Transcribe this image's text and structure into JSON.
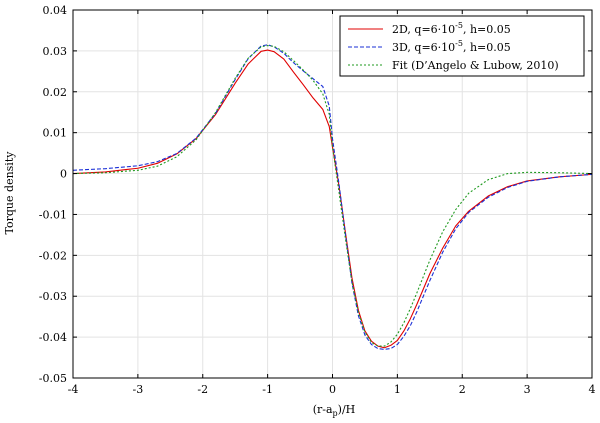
{
  "chart_data": {
    "type": "line",
    "title": "",
    "xlabel": "(r-a",
    "xlabel_sub": "p",
    "xlabel_suffix": ")/H",
    "ylabel": "Torque density",
    "xlim": [
      -4,
      4
    ],
    "ylim": [
      -0.05,
      0.04
    ],
    "xticks": [
      -4,
      -3,
      -2,
      -1,
      0,
      1,
      2,
      3,
      4
    ],
    "xtick_labels": [
      "-4",
      "-3",
      "-2",
      "-1",
      "0",
      "1",
      "2",
      "3",
      "4"
    ],
    "yticks": [
      -0.05,
      -0.04,
      -0.03,
      -0.02,
      -0.01,
      0,
      0.01,
      0.02,
      0.03,
      0.04
    ],
    "ytick_labels": [
      "-0.05",
      "-0.04",
      "-0.03",
      "-0.02",
      "-0.01",
      "0",
      "0.01",
      "0.02",
      "0.03",
      "0.04"
    ],
    "grid": true,
    "legend_position": "top-right",
    "series": [
      {
        "name": "2D, q=6·10",
        "name_sup": "-5",
        "name_suffix": ", h=0.05",
        "color": "#e00000",
        "dash": "",
        "x": [
          -4,
          -3.5,
          -3,
          -2.7,
          -2.4,
          -2.1,
          -1.8,
          -1.5,
          -1.3,
          -1.1,
          -1.0,
          -0.9,
          -0.75,
          -0.6,
          -0.45,
          -0.3,
          -0.15,
          -0.05,
          0.0,
          0.1,
          0.2,
          0.3,
          0.4,
          0.5,
          0.6,
          0.7,
          0.8,
          0.9,
          1.0,
          1.1,
          1.2,
          1.3,
          1.5,
          1.7,
          1.9,
          2.1,
          2.4,
          2.7,
          3.0,
          3.5,
          4.0
        ],
        "y": [
          0.0,
          0.0004,
          0.0013,
          0.0025,
          0.0048,
          0.0086,
          0.0145,
          0.0221,
          0.0268,
          0.0299,
          0.0302,
          0.0298,
          0.028,
          0.0248,
          0.0217,
          0.0185,
          0.0157,
          0.0115,
          0.0065,
          -0.003,
          -0.0145,
          -0.0255,
          -0.0335,
          -0.0385,
          -0.041,
          -0.0422,
          -0.0426,
          -0.042,
          -0.0408,
          -0.0385,
          -0.0355,
          -0.032,
          -0.0245,
          -0.0182,
          -0.0128,
          -0.0092,
          -0.0055,
          -0.0032,
          -0.0018,
          -0.0008,
          -0.0002
        ]
      },
      {
        "name": "3D, q=6·10",
        "name_sup": "-5",
        "name_suffix": ", h=0.05",
        "color": "#1a2fd6",
        "dash": "4,2",
        "x": [
          -4,
          -3.5,
          -3,
          -2.7,
          -2.4,
          -2.1,
          -1.8,
          -1.5,
          -1.3,
          -1.1,
          -1.0,
          -0.9,
          -0.75,
          -0.6,
          -0.45,
          -0.3,
          -0.15,
          -0.05,
          0.0,
          0.1,
          0.2,
          0.3,
          0.4,
          0.5,
          0.6,
          0.7,
          0.8,
          0.9,
          1.0,
          1.1,
          1.2,
          1.3,
          1.5,
          1.7,
          1.9,
          2.1,
          2.4,
          2.7,
          3.0,
          3.5,
          4.0
        ],
        "y": [
          0.0008,
          0.0012,
          0.0019,
          0.0029,
          0.0049,
          0.0087,
          0.0148,
          0.023,
          0.0281,
          0.0312,
          0.0315,
          0.031,
          0.0294,
          0.0271,
          0.0251,
          0.0232,
          0.0213,
          0.0165,
          0.0085,
          -0.0025,
          -0.015,
          -0.0268,
          -0.0348,
          -0.0395,
          -0.0418,
          -0.0428,
          -0.043,
          -0.0428,
          -0.0418,
          -0.0398,
          -0.0372,
          -0.0338,
          -0.0262,
          -0.0192,
          -0.0135,
          -0.0095,
          -0.0058,
          -0.0034,
          -0.0019,
          -0.0008,
          -0.0002
        ]
      },
      {
        "name": "Fit (D’Angelo & Lubow, 2010)",
        "name_sup": "",
        "name_suffix": "",
        "color": "#1f9a1f",
        "dash": "2,2",
        "x": [
          -4,
          -3.5,
          -3,
          -2.7,
          -2.4,
          -2.1,
          -1.8,
          -1.5,
          -1.3,
          -1.1,
          -1.0,
          -0.9,
          -0.75,
          -0.6,
          -0.45,
          -0.3,
          -0.15,
          -0.05,
          0.0,
          0.1,
          0.2,
          0.3,
          0.4,
          0.5,
          0.6,
          0.7,
          0.8,
          0.9,
          1.0,
          1.1,
          1.2,
          1.3,
          1.5,
          1.7,
          1.9,
          2.1,
          2.4,
          2.7,
          3.0,
          3.5,
          4.0
        ],
        "y": [
          0.0,
          0.0002,
          0.0008,
          0.0018,
          0.0041,
          0.0083,
          0.015,
          0.0233,
          0.0282,
          0.031,
          0.0313,
          0.0311,
          0.0298,
          0.0276,
          0.0253,
          0.0228,
          0.0195,
          0.0145,
          0.0065,
          -0.0045,
          -0.016,
          -0.0265,
          -0.034,
          -0.0388,
          -0.0413,
          -0.0422,
          -0.0422,
          -0.0412,
          -0.0393,
          -0.0365,
          -0.033,
          -0.0292,
          -0.0212,
          -0.0142,
          -0.0088,
          -0.0048,
          -0.0015,
          0.0,
          0.0003,
          0.0002,
          0.0
        ]
      }
    ]
  }
}
